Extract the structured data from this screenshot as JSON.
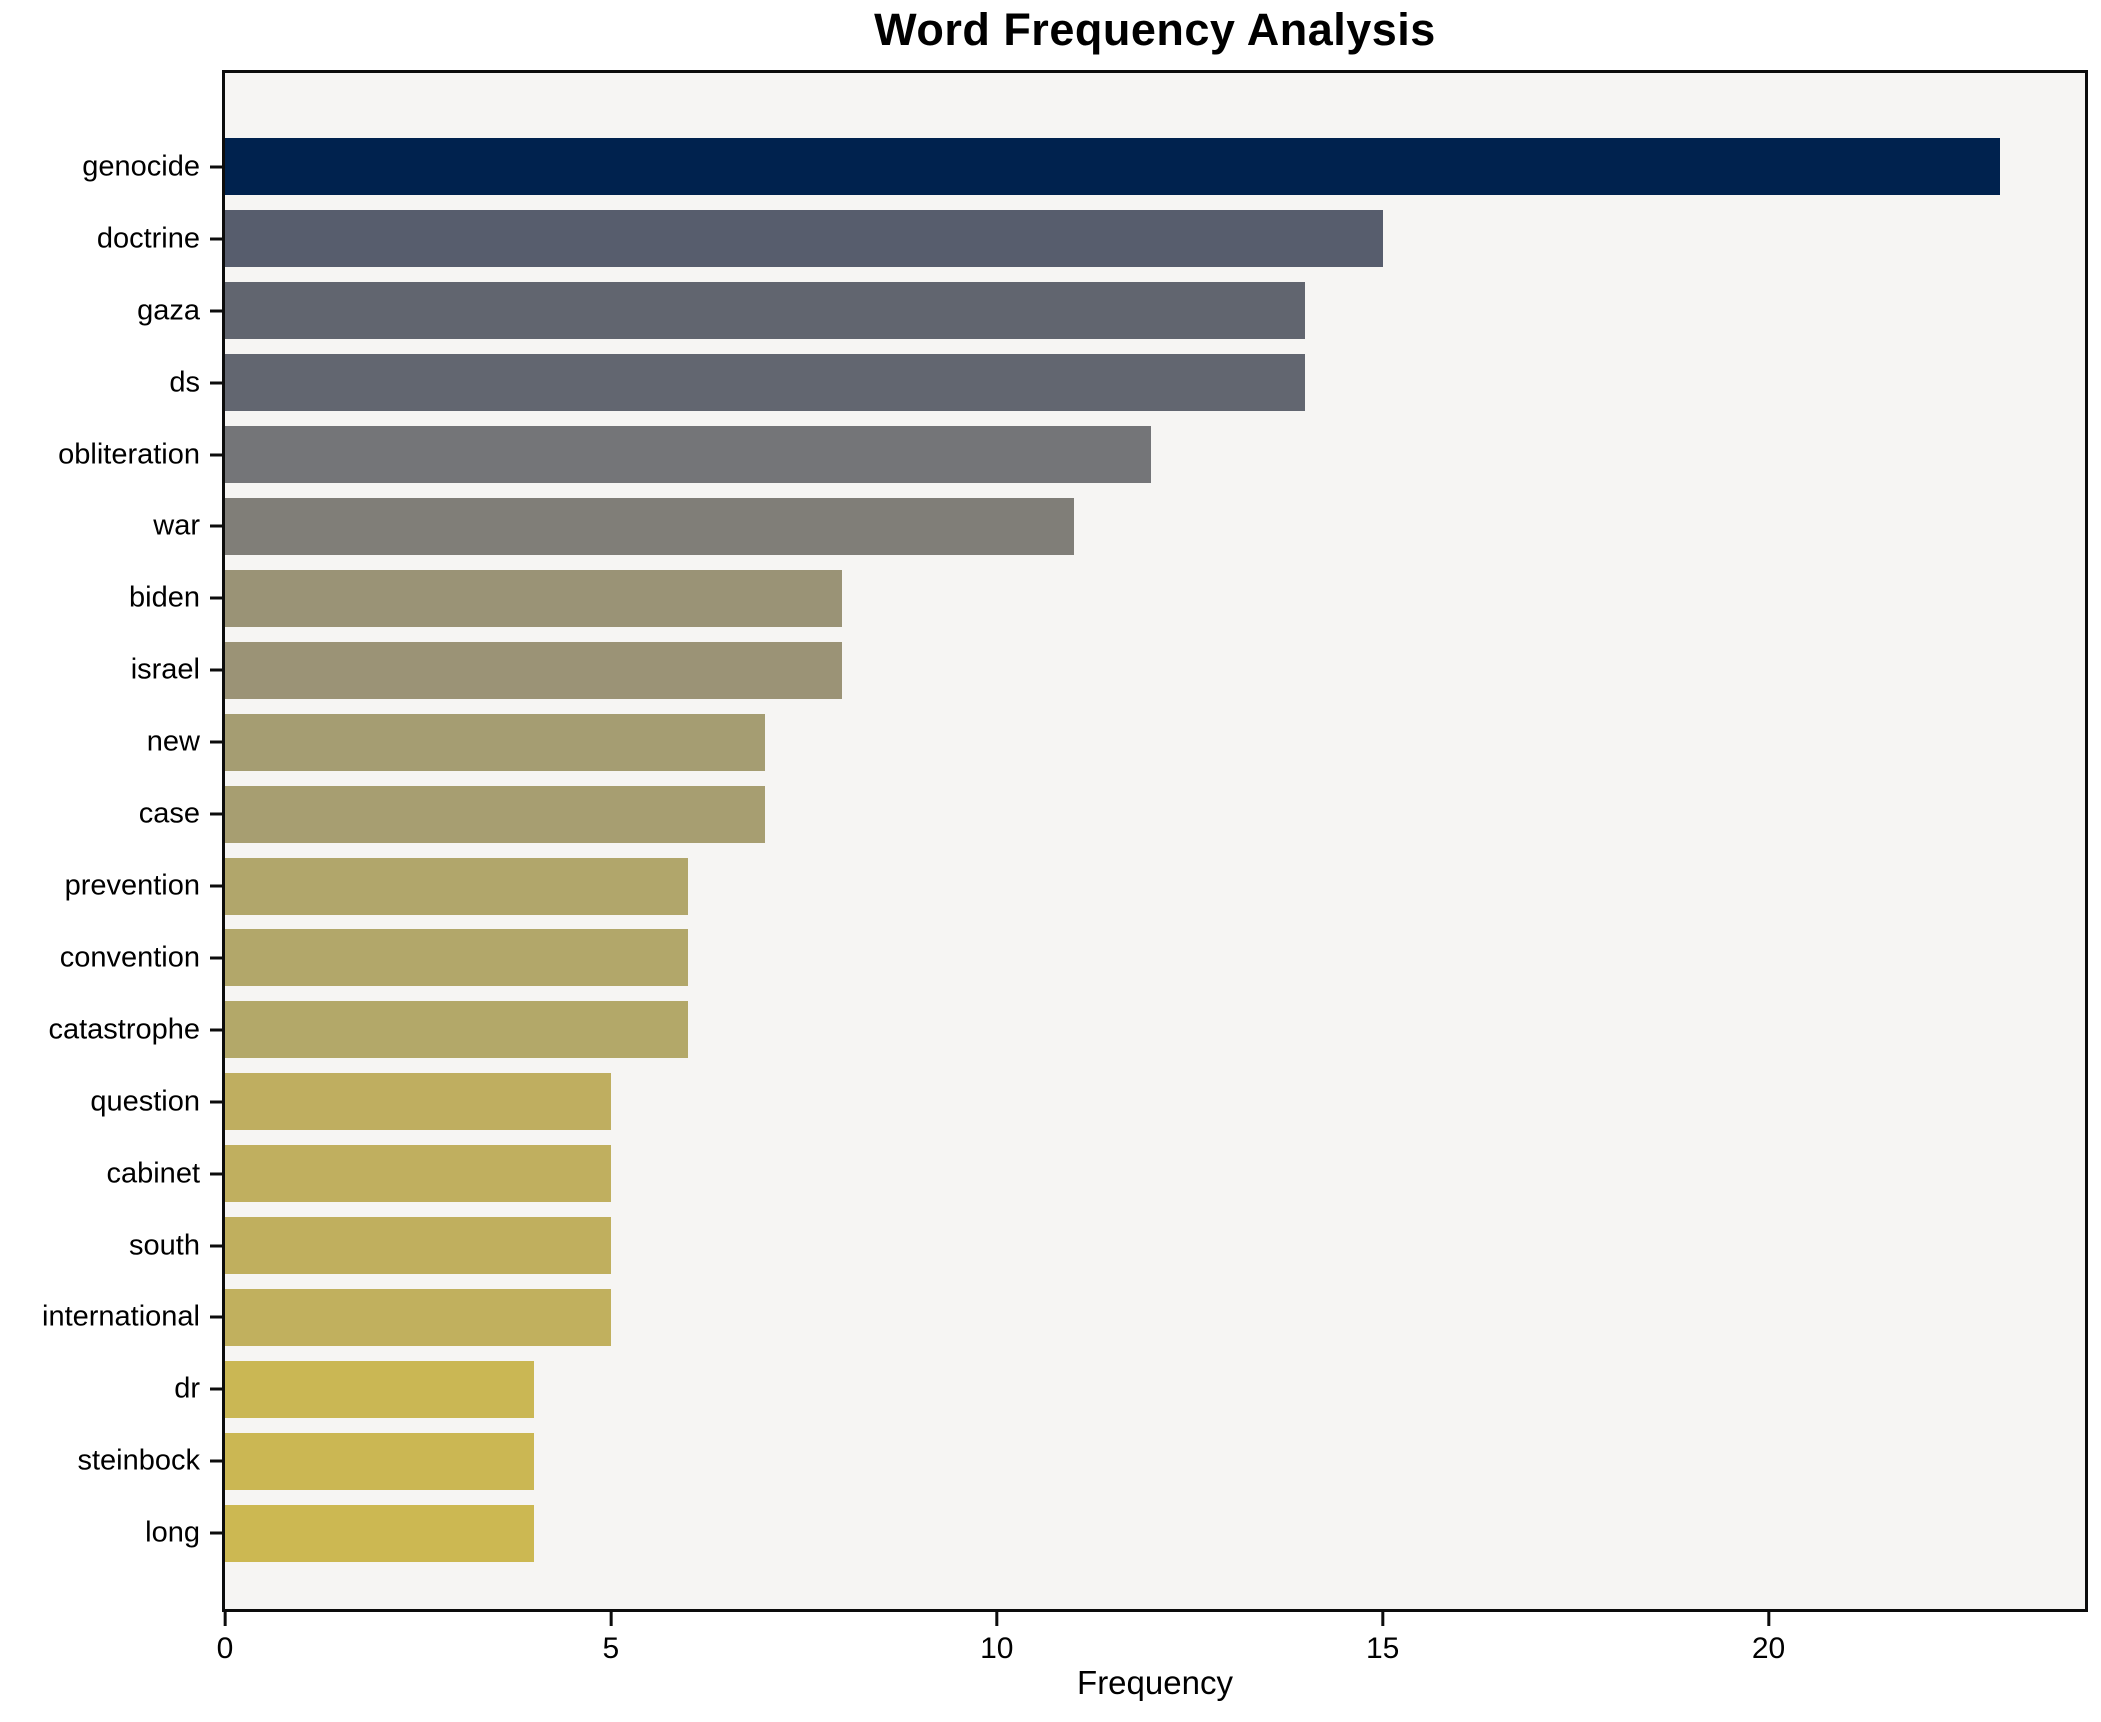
{
  "chart_data": {
    "type": "bar",
    "orientation": "horizontal",
    "title": "Word Frequency Analysis",
    "xlabel": "Frequency",
    "ylabel": "",
    "grid": false,
    "legend": "none",
    "xlim": [
      0,
      24.1
    ],
    "xticks": [
      0,
      5,
      10,
      15,
      20
    ],
    "categories": [
      "genocide",
      "doctrine",
      "gaza",
      "ds",
      "obliteration",
      "war",
      "biden",
      "israel",
      "new",
      "case",
      "prevention",
      "convention",
      "catastrophe",
      "question",
      "cabinet",
      "south",
      "international",
      "dr",
      "steinbock",
      "long"
    ],
    "values": [
      23,
      15,
      14,
      14,
      12,
      11,
      8,
      8,
      7,
      7,
      6,
      6,
      6,
      5,
      5,
      5,
      5,
      4,
      4,
      4
    ],
    "bar_colors": [
      "#00224e",
      "#575d6d",
      "#61656f",
      "#626670",
      "#747578",
      "#807e78",
      "#9a9376",
      "#9b9376",
      "#a59d72",
      "#a79e71",
      "#b1a66b",
      "#b2a76a",
      "#b3a869",
      "#bfae60",
      "#c0af5f",
      "#c0af5e",
      "#c1b05e",
      "#cab754",
      "#cbb753",
      "#ccb852"
    ],
    "colors": {
      "figure_bg": "#ffffff",
      "axes_bg": "#f6f5f3",
      "spine": "#0c0c0c",
      "text": "#000000"
    }
  }
}
